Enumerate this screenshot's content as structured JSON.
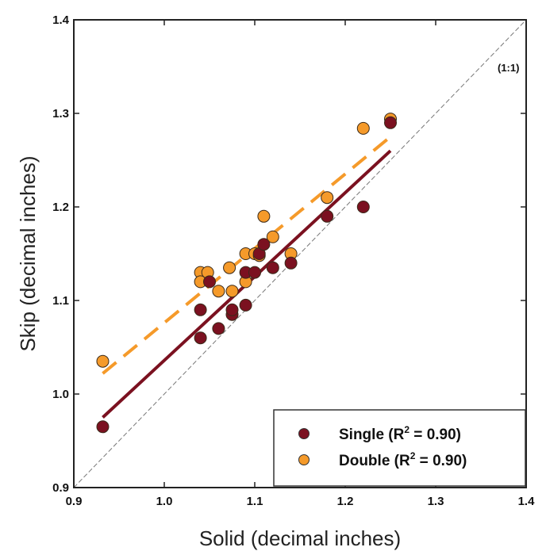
{
  "chart_data": {
    "type": "scatter",
    "xlabel": "Solid (decimal inches)",
    "ylabel": "Skip (decimal inches)",
    "xlim": [
      0.9,
      1.4
    ],
    "ylim": [
      0.9,
      1.4
    ],
    "x_ticks": [
      "0.9",
      "1.0",
      "1.1",
      "1.2",
      "1.3",
      "1.4"
    ],
    "y_ticks": [
      "0.9",
      "1.0",
      "1.1",
      "1.2",
      "1.3",
      "1.4"
    ],
    "grid": false,
    "legend_position": "bottom-right",
    "reference_line": {
      "label": "(1:1)",
      "from": [
        0.9,
        0.9
      ],
      "to": [
        1.4,
        1.4
      ],
      "style": "dashed",
      "color": "#777777"
    },
    "series": [
      {
        "name": "Single",
        "r2_label": "0.90",
        "color": "#7b1120",
        "points": [
          [
            0.932,
            0.965
          ],
          [
            1.04,
            1.09
          ],
          [
            1.04,
            1.06
          ],
          [
            1.05,
            1.12
          ],
          [
            1.06,
            1.07
          ],
          [
            1.075,
            1.085
          ],
          [
            1.075,
            1.09
          ],
          [
            1.09,
            1.095
          ],
          [
            1.09,
            1.13
          ],
          [
            1.1,
            1.13
          ],
          [
            1.105,
            1.15
          ],
          [
            1.11,
            1.16
          ],
          [
            1.12,
            1.135
          ],
          [
            1.14,
            1.14
          ],
          [
            1.18,
            1.19
          ],
          [
            1.22,
            1.2
          ],
          [
            1.25,
            1.29
          ]
        ],
        "trend": {
          "from": [
            0.932,
            0.975
          ],
          "to": [
            1.25,
            1.26
          ],
          "style": "solid"
        }
      },
      {
        "name": "Double",
        "r2_label": "0.90",
        "color": "#f59a2a",
        "points": [
          [
            0.932,
            1.035
          ],
          [
            1.04,
            1.13
          ],
          [
            1.04,
            1.12
          ],
          [
            1.048,
            1.13
          ],
          [
            1.06,
            1.11
          ],
          [
            1.072,
            1.135
          ],
          [
            1.075,
            1.11
          ],
          [
            1.09,
            1.15
          ],
          [
            1.09,
            1.12
          ],
          [
            1.1,
            1.15
          ],
          [
            1.105,
            1.148
          ],
          [
            1.11,
            1.19
          ],
          [
            1.12,
            1.168
          ],
          [
            1.14,
            1.15
          ],
          [
            1.18,
            1.21
          ],
          [
            1.22,
            1.284
          ],
          [
            1.25,
            1.294
          ]
        ],
        "trend": {
          "from": [
            0.932,
            1.022
          ],
          "to": [
            1.25,
            1.275
          ],
          "style": "dashed"
        }
      }
    ]
  }
}
